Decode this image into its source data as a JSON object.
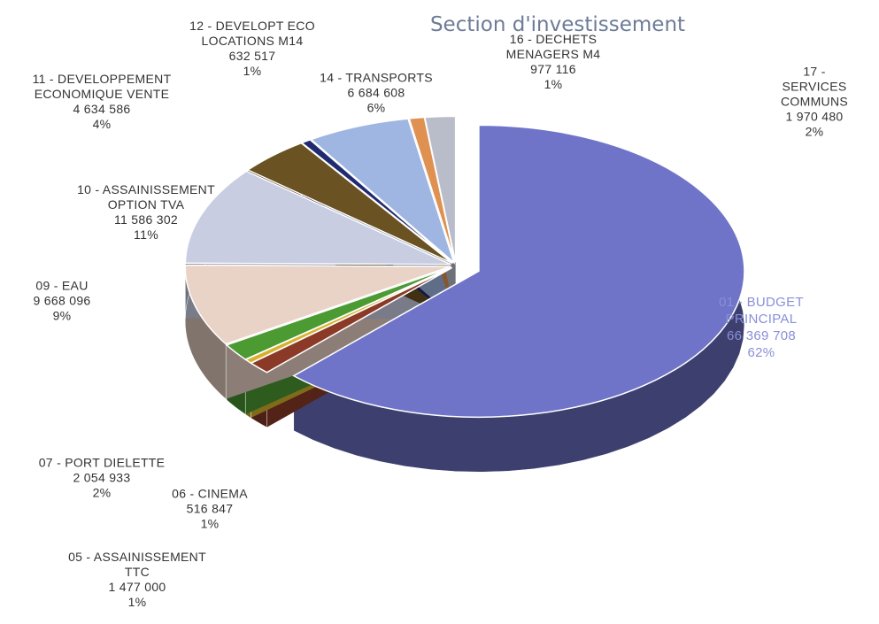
{
  "chart_data": {
    "type": "pie",
    "title": "Section d'investissement",
    "categories": [
      "01 - BUDGET\nPRINCIPAL",
      "05 - ASSAINISSEMENT\nTTC",
      "06 - CINEMA",
      "07 - PORT DIELETTE",
      "09 - EAU",
      "10 - ASSAINISSEMENT\nOPTION TVA",
      "11 - DEVELOPPEMENT\nECONOMIQUE VENTE",
      "12 - DEVELOPT ECO\nLOCATIONS M14",
      "14 - TRANSPORTS",
      "16 - DECHETS\nMENAGERS M4",
      "17 - SERVICES\nCOMMUNS"
    ],
    "values": [
      66369708,
      1477000,
      516847,
      2054933,
      9668096,
      11586302,
      4634586,
      632517,
      6684608,
      977116,
      1970480
    ],
    "value_labels": [
      "66 369 708",
      "1 477 000",
      "516 847",
      "2 054 933",
      "9 668 096",
      "11 586 302",
      "4 634 586",
      "632 517",
      "6 684 608",
      "977 116",
      "1 970 480"
    ],
    "percents": [
      62,
      1,
      1,
      2,
      9,
      11,
      4,
      1,
      6,
      1,
      2
    ],
    "percent_labels": [
      "62%",
      "1%",
      "1%",
      "2%",
      "9%",
      "11%",
      "4%",
      "1%",
      "6%",
      "1%",
      "2%"
    ],
    "colors": [
      "#6f74c8",
      "#8b3a28",
      "#d6b22c",
      "#4b9a32",
      "#e9d2c6",
      "#c9cde2",
      "#6b5222",
      "#1f2a70",
      "#9fb6e2",
      "#de9150",
      "#b9bdc9"
    ]
  }
}
